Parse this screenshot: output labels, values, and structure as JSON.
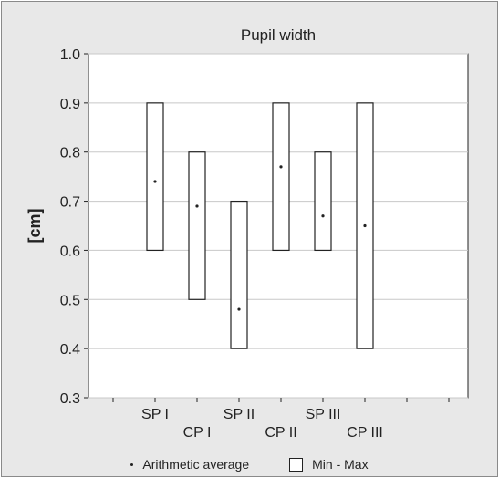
{
  "chart_data": {
    "type": "box",
    "title": "Pupil width",
    "xlabel": "",
    "ylabel": "[cm]",
    "ylim": [
      0.3,
      1.0
    ],
    "yticks": [
      "0.3",
      "0.4",
      "0.5",
      "0.6",
      "0.7",
      "0.8",
      "0.9",
      "1.0"
    ],
    "grid": true,
    "categories": [
      "SP I",
      "CP I",
      "SP II",
      "CP II",
      "SP III",
      "CP III"
    ],
    "min": [
      0.6,
      0.5,
      0.4,
      0.6,
      0.6,
      0.4
    ],
    "max": [
      0.9,
      0.8,
      0.7,
      0.9,
      0.8,
      0.9
    ],
    "mean": [
      0.74,
      0.69,
      0.48,
      0.77,
      0.67,
      0.65
    ],
    "legend": [
      "Arithmetic average",
      "Min - Max"
    ],
    "legend_position": "bottom"
  }
}
